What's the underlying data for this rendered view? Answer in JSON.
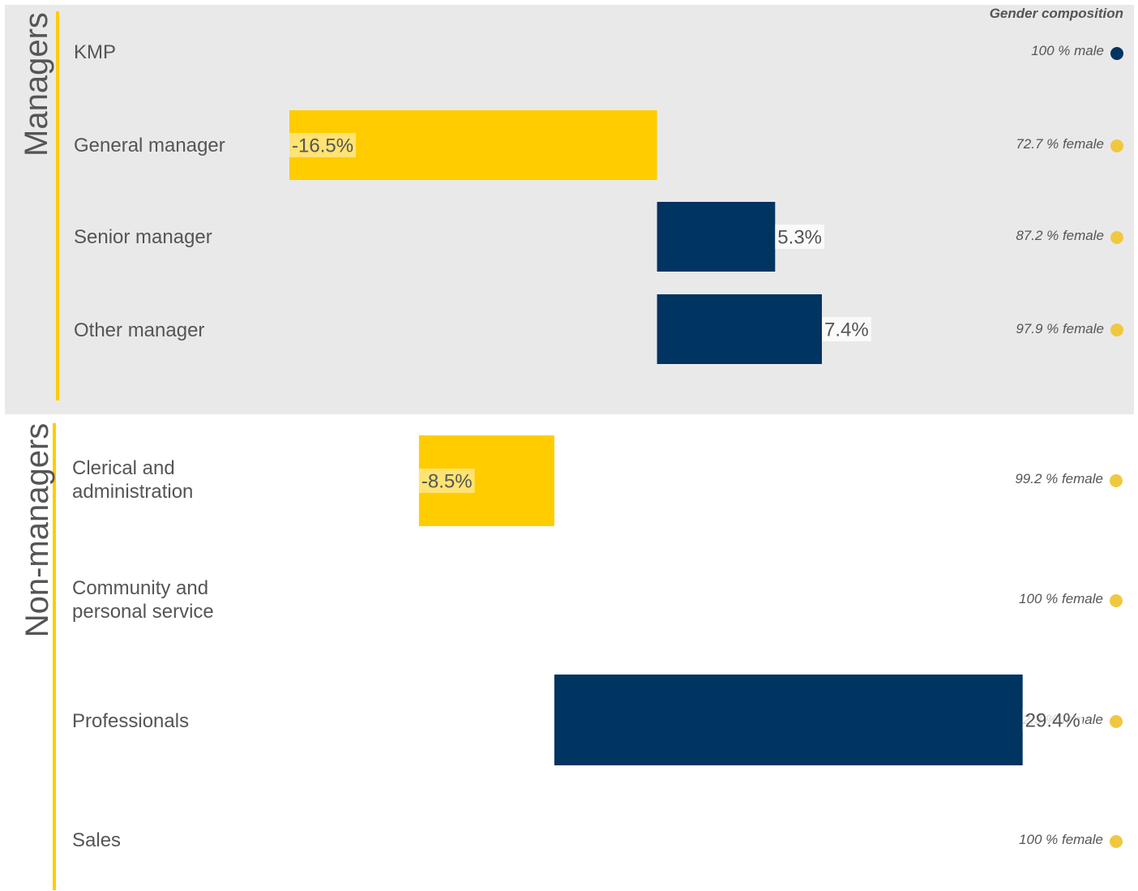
{
  "composition_header": "Gender composition",
  "colors": {
    "female": "#ffcc00",
    "male": "#003461",
    "female_dot": "#f0c840",
    "male_dot": "#003461",
    "panel_bg": "#e9e9e9",
    "text": "#555555"
  },
  "groups": [
    {
      "title": "Managers"
    },
    {
      "title": "Non-managers"
    }
  ],
  "rows": [
    {
      "label_lines": [
        "KMP",
        ""
      ],
      "composition": "100 % male",
      "dominant": "male"
    },
    {
      "label_lines": [
        "General manager",
        ""
      ],
      "composition": "72.7 % female",
      "dominant": "female"
    },
    {
      "label_lines": [
        "Senior manager",
        ""
      ],
      "composition": "87.2 % female",
      "dominant": "female"
    },
    {
      "label_lines": [
        "Other manager",
        ""
      ],
      "composition": "97.9 % female",
      "dominant": "female"
    },
    {
      "label_lines": [
        "Clerical and",
        "administration"
      ],
      "composition": "99.2 % female",
      "dominant": "female"
    },
    {
      "label_lines": [
        "Community and",
        "personal service"
      ],
      "composition": "100 % female",
      "dominant": "female"
    },
    {
      "label_lines": [
        "Professionals",
        ""
      ],
      "composition": "92.3 % female",
      "dominant": "female"
    },
    {
      "label_lines": [
        "Sales",
        ""
      ],
      "composition": "100 % female",
      "dominant": "female"
    }
  ],
  "chart_data": [
    {
      "type": "bar",
      "group": "Managers",
      "categories": [
        "KMP",
        "General manager",
        "Senior manager",
        "Other manager"
      ],
      "values": [
        null,
        -16.5,
        5.3,
        7.4
      ],
      "labels": [
        "",
        "-16.5%",
        "5.3%",
        "7.4%"
      ],
      "colors": [
        "",
        "#ffcc00",
        "#003461",
        "#003461"
      ],
      "xlim": [
        -16.5,
        11.0
      ]
    },
    {
      "type": "bar",
      "group": "Non-managers",
      "categories": [
        "Clerical and administration",
        "Community and personal service",
        "Professionals",
        "Sales"
      ],
      "values": [
        -8.5,
        null,
        29.4,
        null
      ],
      "labels": [
        "-8.5%",
        "",
        "29.4%",
        ""
      ],
      "colors": [
        "#ffcc00",
        "",
        "#003461",
        ""
      ],
      "xlim": [
        -17.4,
        37.1
      ]
    }
  ]
}
